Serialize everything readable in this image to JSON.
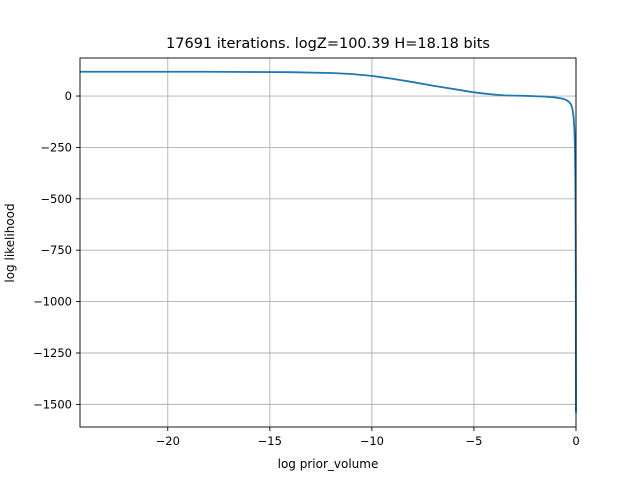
{
  "chart_data": {
    "type": "line",
    "title": "17691 iterations. logZ=100.39 H=18.18 bits",
    "xlabel": "log prior_volume",
    "ylabel": "log likelihood",
    "xlim": [
      -24.3,
      0
    ],
    "ylim": [
      -1610,
      185
    ],
    "xticks": [
      -20,
      -15,
      -10,
      -5,
      0
    ],
    "xtick_labels": [
      "−20",
      "−15",
      "−10",
      "−5",
      "0"
    ],
    "yticks": [
      0,
      -250,
      -500,
      -750,
      -1000,
      -1250,
      -1500
    ],
    "ytick_labels": [
      "0",
      "−250",
      "−500",
      "−750",
      "−1000",
      "−1250",
      "−1500"
    ],
    "grid": true,
    "legend": "none",
    "colors": {
      "series": "#1f77b4"
    },
    "series": [
      {
        "x": [
          -24.3,
          -22,
          -20,
          -18,
          -16,
          -14,
          -12,
          -11,
          -10,
          -9,
          -8,
          -7,
          -6,
          -5.5,
          -5,
          -4.5,
          -4,
          -3.5,
          -3,
          -2.5,
          -2,
          -1.5,
          -1,
          -0.7,
          -0.5,
          -0.35,
          -0.25,
          -0.18,
          -0.12,
          -0.08,
          -0.05,
          -0.03,
          -0.015,
          -0.008,
          -0.004,
          -0.001
        ],
        "y": [
          118,
          118,
          118,
          118,
          117,
          116,
          112,
          107,
          98,
          84,
          68,
          50,
          34,
          26,
          18,
          12,
          7,
          3,
          2,
          1,
          -1,
          -3,
          -7,
          -12,
          -18,
          -28,
          -40,
          -60,
          -100,
          -160,
          -260,
          -420,
          -700,
          -1000,
          -1300,
          -1540
        ]
      }
    ]
  }
}
